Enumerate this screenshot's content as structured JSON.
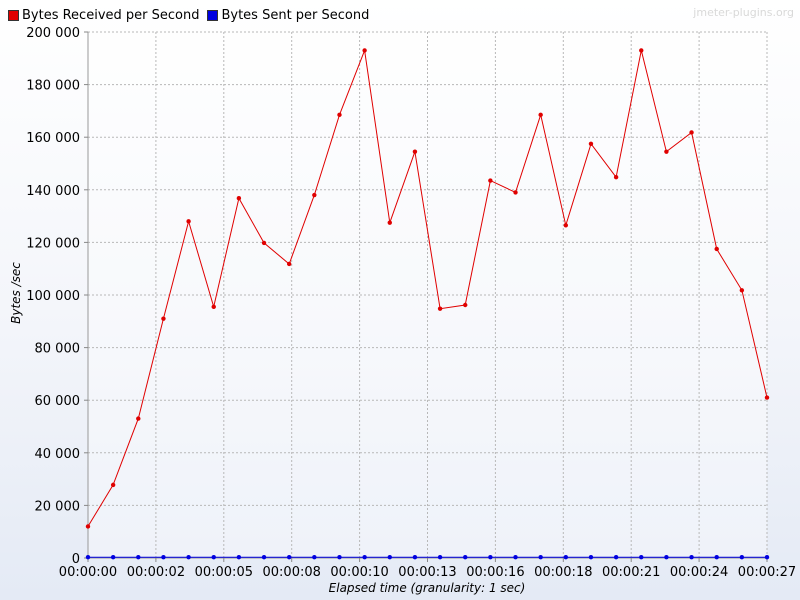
{
  "watermark": "jmeter-plugins.org",
  "colors": {
    "received": "#e00000",
    "sent": "#0000e0"
  },
  "chart_data": {
    "type": "line",
    "title": "",
    "xlabel": "Elapsed time (granularity: 1 sec)",
    "ylabel": "Bytes /sec",
    "ylim": [
      0,
      200000
    ],
    "xlim": [
      0,
      27
    ],
    "yticks": [
      0,
      20000,
      40000,
      60000,
      80000,
      100000,
      120000,
      140000,
      160000,
      180000,
      200000
    ],
    "ytick_labels": [
      "0",
      "20 000",
      "40 000",
      "60 000",
      "80 000",
      "100 000",
      "120 000",
      "140 000",
      "160 000",
      "180 000",
      "200 000"
    ],
    "xticks": [
      0,
      2.7,
      5.4,
      8.1,
      10.8,
      13.5,
      16.2,
      18.9,
      21.6,
      24.3,
      27
    ],
    "xtick_labels": [
      "00:00:00",
      "00:00:02",
      "00:00:05",
      "00:00:08",
      "00:00:10",
      "00:00:13",
      "00:00:16",
      "00:00:18",
      "00:00:21",
      "00:00:24",
      "00:00:27"
    ],
    "grid": true,
    "legend": "top-left",
    "x": [
      0,
      1,
      2,
      3,
      4,
      5,
      6,
      7,
      8,
      9,
      10,
      11,
      12,
      13,
      14,
      15,
      16,
      17,
      18,
      19,
      20,
      21,
      22,
      23,
      24,
      25,
      26,
      27
    ],
    "series": [
      {
        "name": "Bytes Received per Second",
        "values": [
          12000,
          27800,
          53000,
          91000,
          128000,
          95500,
          136800,
          119800,
          111800,
          138000,
          168500,
          193000,
          127500,
          154500,
          94800,
          96200,
          143500,
          139000,
          168500,
          126500,
          157500,
          144800,
          193000,
          154500,
          161800,
          117500,
          101800,
          61000
        ]
      },
      {
        "name": "Bytes Sent per Second",
        "values": [
          300,
          300,
          300,
          300,
          300,
          300,
          300,
          300,
          300,
          300,
          300,
          300,
          300,
          300,
          300,
          300,
          300,
          300,
          300,
          300,
          300,
          300,
          300,
          300,
          300,
          300,
          300,
          300
        ]
      }
    ]
  }
}
